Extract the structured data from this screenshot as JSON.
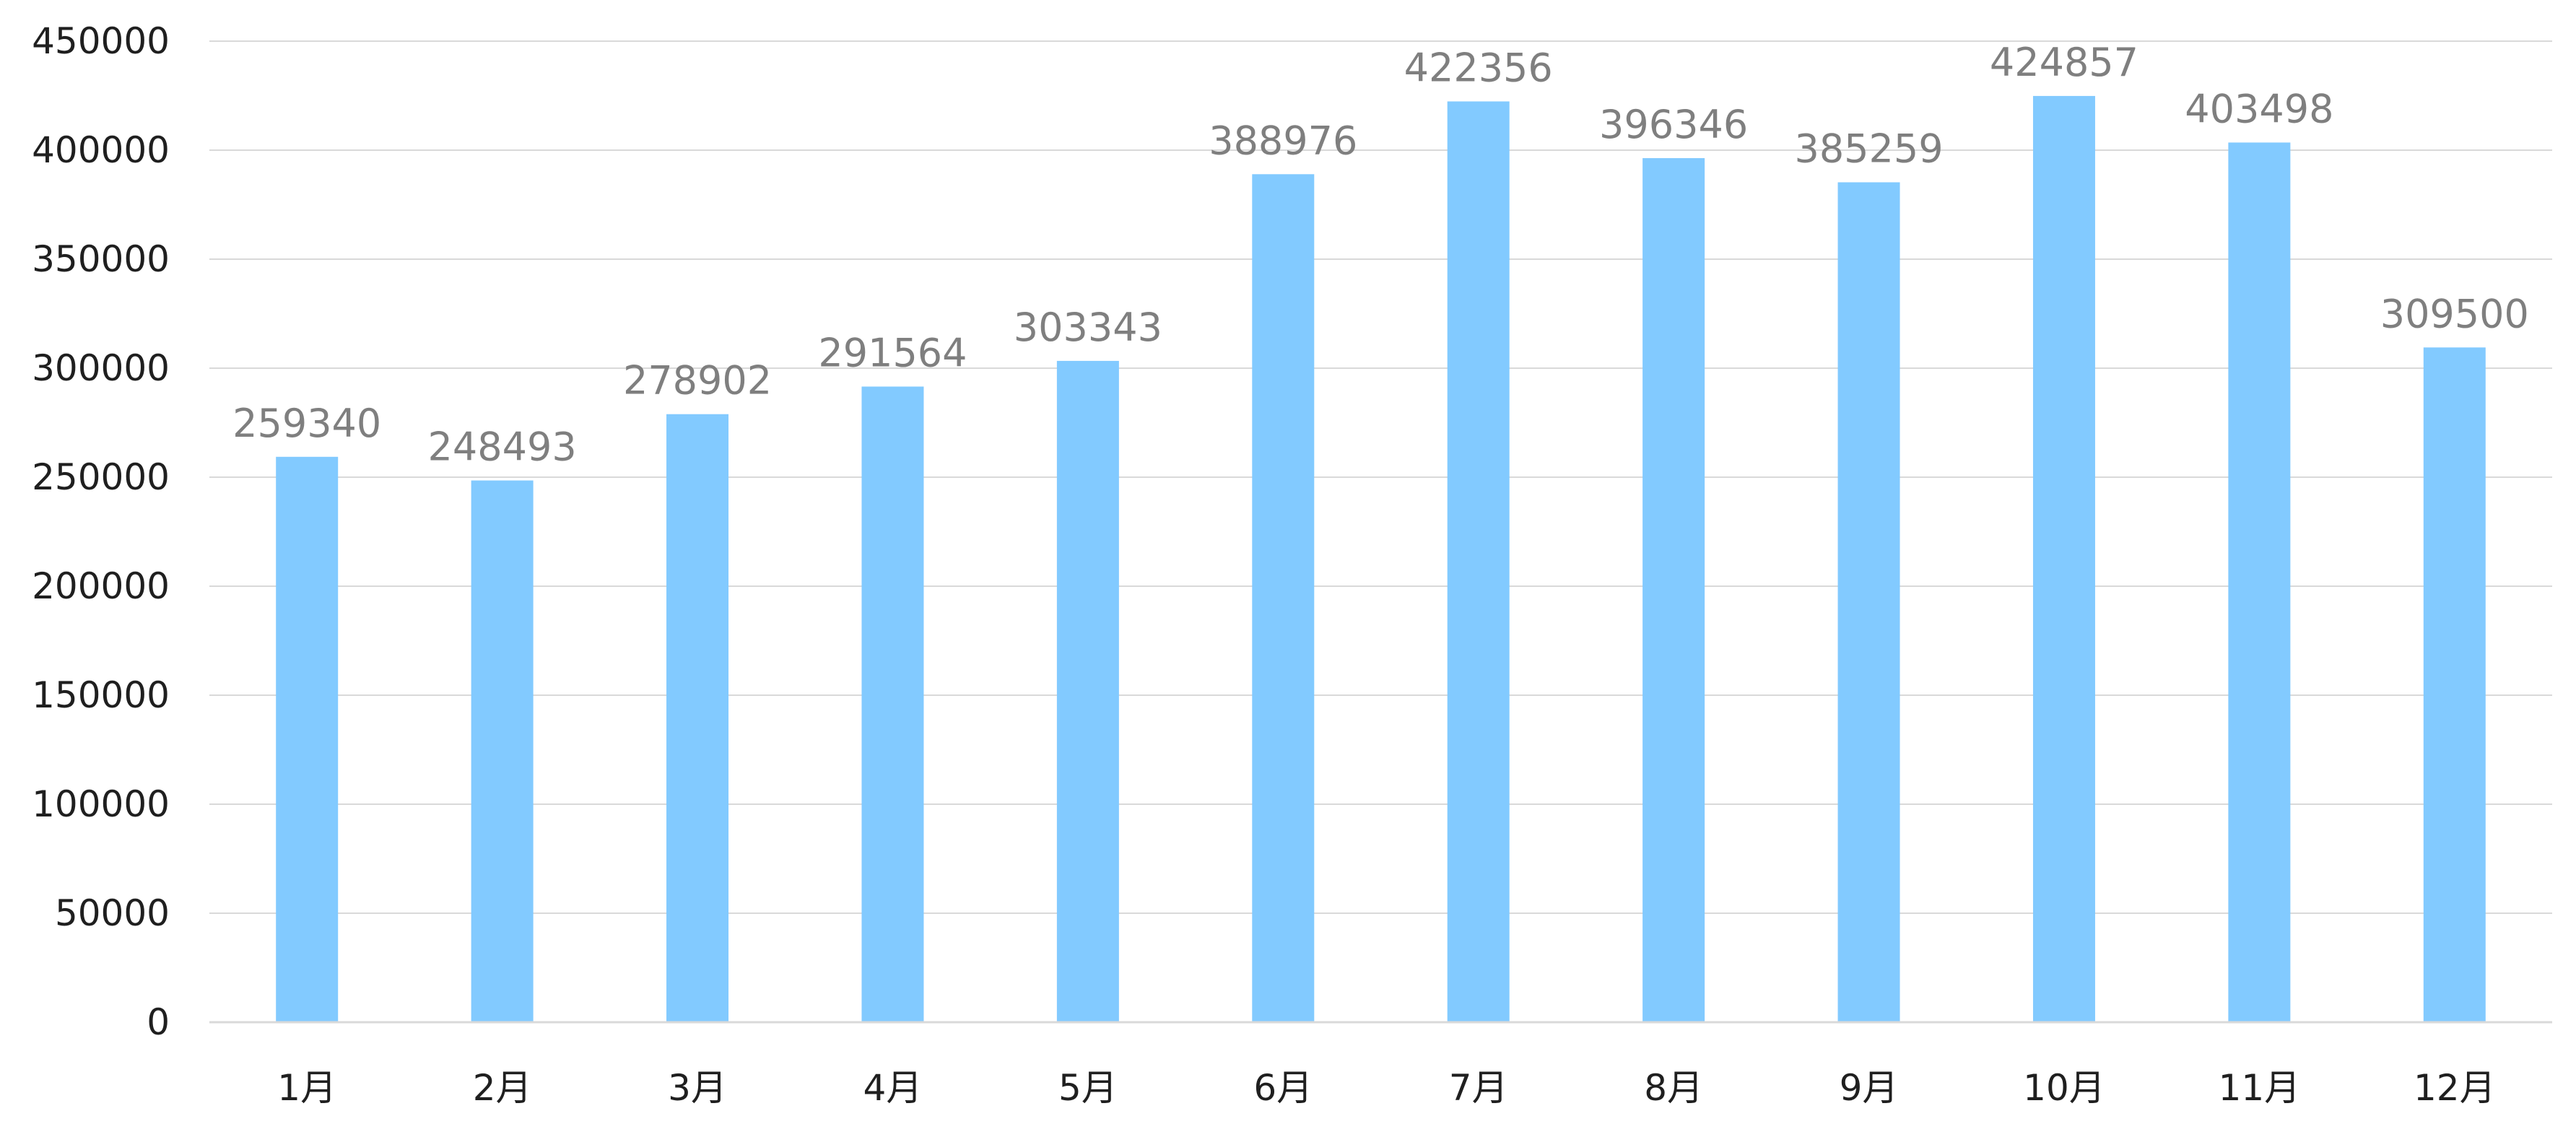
{
  "chart_data": {
    "type": "bar",
    "title": "",
    "xlabel": "",
    "ylabel": "",
    "categories": [
      "1月",
      "2月",
      "3月",
      "4月",
      "5月",
      "6月",
      "7月",
      "8月",
      "9月",
      "10月",
      "11月",
      "12月"
    ],
    "series": [
      {
        "values": [
          259340,
          248493,
          278902,
          291564,
          303343,
          388976,
          422356,
          396346,
          385259,
          424857,
          403498,
          309500
        ],
        "color": "#82CAFF"
      }
    ],
    "ylim": [
      0,
      450000
    ],
    "yticks": [
      0,
      50000,
      100000,
      150000,
      200000,
      250000,
      300000,
      350000,
      400000,
      450000
    ],
    "data_labels": true,
    "grid": true,
    "legend": "none"
  }
}
